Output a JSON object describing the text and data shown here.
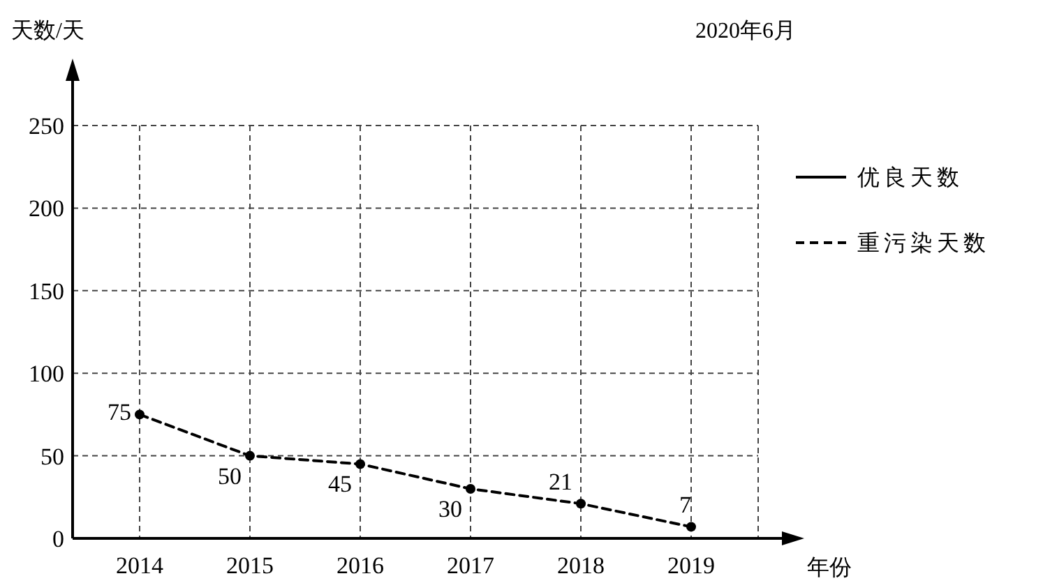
{
  "chart_data": {
    "type": "line",
    "title": "2020年6月",
    "xlabel": "年份",
    "ylabel": "天数/天",
    "categories": [
      "2014",
      "2015",
      "2016",
      "2017",
      "2018",
      "2019"
    ],
    "series": [
      {
        "name": "优良天数",
        "color": "#000000",
        "line_style": "solid",
        "values": [
          null,
          null,
          null,
          null,
          null,
          null
        ]
      },
      {
        "name": "重污染天数",
        "color": "#000000",
        "line_style": "dashed",
        "marker": "circle",
        "values": [
          75,
          50,
          45,
          30,
          21,
          7
        ]
      }
    ],
    "ylim": [
      0,
      250
    ],
    "yticks": [
      0,
      50,
      100,
      150,
      200,
      250
    ],
    "grid": true,
    "legend": "right",
    "data_labels": true
  }
}
